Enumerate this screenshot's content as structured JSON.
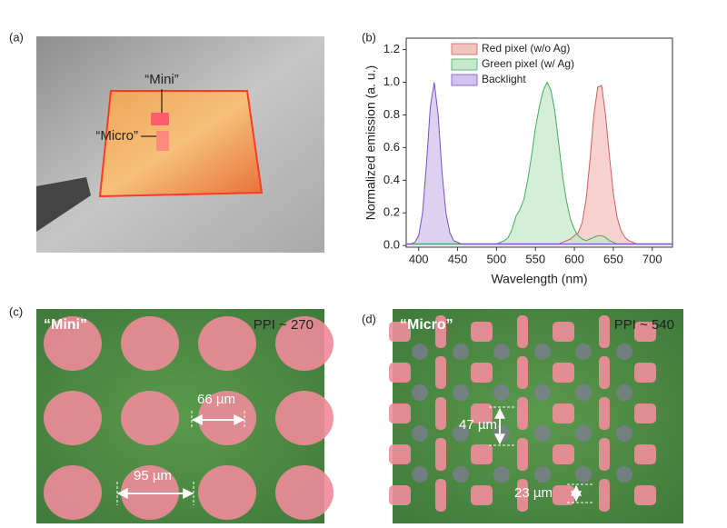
{
  "panels": {
    "a": {
      "label": "(a)",
      "mini": "“Mini”",
      "micro": "“Micro”"
    },
    "b": {
      "label": "(b)"
    },
    "c": {
      "label": "(c)",
      "name": "“Mini”",
      "ppi": "PPI ~ 270",
      "size": "66 µm",
      "pitch": "95 µm"
    },
    "d": {
      "label": "(d)",
      "name": "“Micro”",
      "ppi": "PPI ~ 540",
      "pitch": "47 µm",
      "size": "23 µm"
    }
  },
  "chart_data": {
    "type": "line",
    "xlabel": "Wavelength (nm)",
    "ylabel": "Normalized emission (a. u.)",
    "xlim": [
      384,
      726
    ],
    "ylim": [
      -0.01,
      1.27
    ],
    "xticks": [
      400,
      450,
      500,
      550,
      600,
      650,
      700
    ],
    "yticks": [
      {
        "value": 0,
        "label": "0.0"
      },
      0.2,
      0.4,
      0.6,
      0.8,
      {
        "value": 1,
        "label": "1.0"
      },
      1.2
    ],
    "legend": "upper center",
    "filled": true,
    "x": [
      385,
      390,
      395,
      400,
      405,
      410,
      415,
      420,
      425,
      430,
      435,
      440,
      445,
      450,
      455,
      460,
      465,
      470,
      475,
      480,
      485,
      490,
      495,
      500,
      505,
      510,
      515,
      520,
      525,
      530,
      535,
      540,
      545,
      550,
      555,
      560,
      565,
      570,
      575,
      580,
      585,
      590,
      595,
      600,
      605,
      610,
      615,
      620,
      625,
      630,
      635,
      640,
      645,
      650,
      655,
      660,
      665,
      670,
      675,
      680,
      685,
      690,
      695,
      700,
      705,
      710,
      715,
      720,
      725
    ],
    "series": [
      {
        "name": "Red pixel (w/o Ag)",
        "color": "#d65c5c",
        "fill": "#f4c3bf",
        "values": [
          0.01,
          0.01,
          0.01,
          0.01,
          0.01,
          0.01,
          0.01,
          0.01,
          0.01,
          0.01,
          0.01,
          0.01,
          0.01,
          0.01,
          0.01,
          0.01,
          0.01,
          0.01,
          0.01,
          0.01,
          0.01,
          0.01,
          0.01,
          0.01,
          0.01,
          0.01,
          0.01,
          0.01,
          0.01,
          0.01,
          0.01,
          0.01,
          0.01,
          0.01,
          0.01,
          0.01,
          0.01,
          0.01,
          0.01,
          0.01,
          0.02,
          0.03,
          0.04,
          0.06,
          0.08,
          0.14,
          0.28,
          0.52,
          0.8,
          0.97,
          0.98,
          0.8,
          0.55,
          0.32,
          0.17,
          0.09,
          0.05,
          0.03,
          0.02,
          0.01,
          0.01,
          0.01,
          0.01,
          0.01,
          0.01,
          0.01,
          0.01,
          0.01,
          0.01
        ]
      },
      {
        "name": "Green pixel (w/ Ag)",
        "color": "#3fae5a",
        "fill": "#c6e8cb",
        "values": [
          0.01,
          0.01,
          0.01,
          0.01,
          0.01,
          0.01,
          0.01,
          0.01,
          0.01,
          0.01,
          0.01,
          0.01,
          0.01,
          0.01,
          0.01,
          0.01,
          0.01,
          0.01,
          0.01,
          0.01,
          0.01,
          0.01,
          0.01,
          0.01,
          0.02,
          0.03,
          0.05,
          0.1,
          0.18,
          0.22,
          0.28,
          0.4,
          0.55,
          0.72,
          0.85,
          0.95,
          1.0,
          0.95,
          0.82,
          0.62,
          0.42,
          0.27,
          0.16,
          0.1,
          0.06,
          0.04,
          0.03,
          0.04,
          0.05,
          0.06,
          0.06,
          0.05,
          0.03,
          0.02,
          0.01,
          0.01,
          0.01,
          0.01,
          0.01,
          0.01,
          0.01,
          0.01,
          0.01,
          0.01,
          0.01,
          0.01,
          0.01,
          0.01,
          0.01
        ]
      },
      {
        "name": "Backlight",
        "color": "#7b4dc9",
        "fill": "#d2c2ee",
        "values": [
          0.01,
          0.01,
          0.02,
          0.06,
          0.2,
          0.5,
          0.85,
          1.0,
          0.8,
          0.45,
          0.2,
          0.08,
          0.03,
          0.02,
          0.01,
          0.01,
          0.01,
          0.01,
          0.01,
          0.01,
          0.01,
          0.01,
          0.01,
          0.01,
          0.01,
          0.01,
          0.01,
          0.01,
          0.01,
          0.01,
          0.01,
          0.01,
          0.01,
          0.01,
          0.01,
          0.01,
          0.01,
          0.01,
          0.01,
          0.01,
          0.01,
          0.01,
          0.01,
          0.01,
          0.01,
          0.01,
          0.01,
          0.01,
          0.01,
          0.01,
          0.01,
          0.01,
          0.01,
          0.01,
          0.01,
          0.01,
          0.01,
          0.01,
          0.01,
          0.01,
          0.01,
          0.01,
          0.01,
          0.01,
          0.01,
          0.01,
          0.01,
          0.01,
          0.01
        ]
      }
    ]
  }
}
